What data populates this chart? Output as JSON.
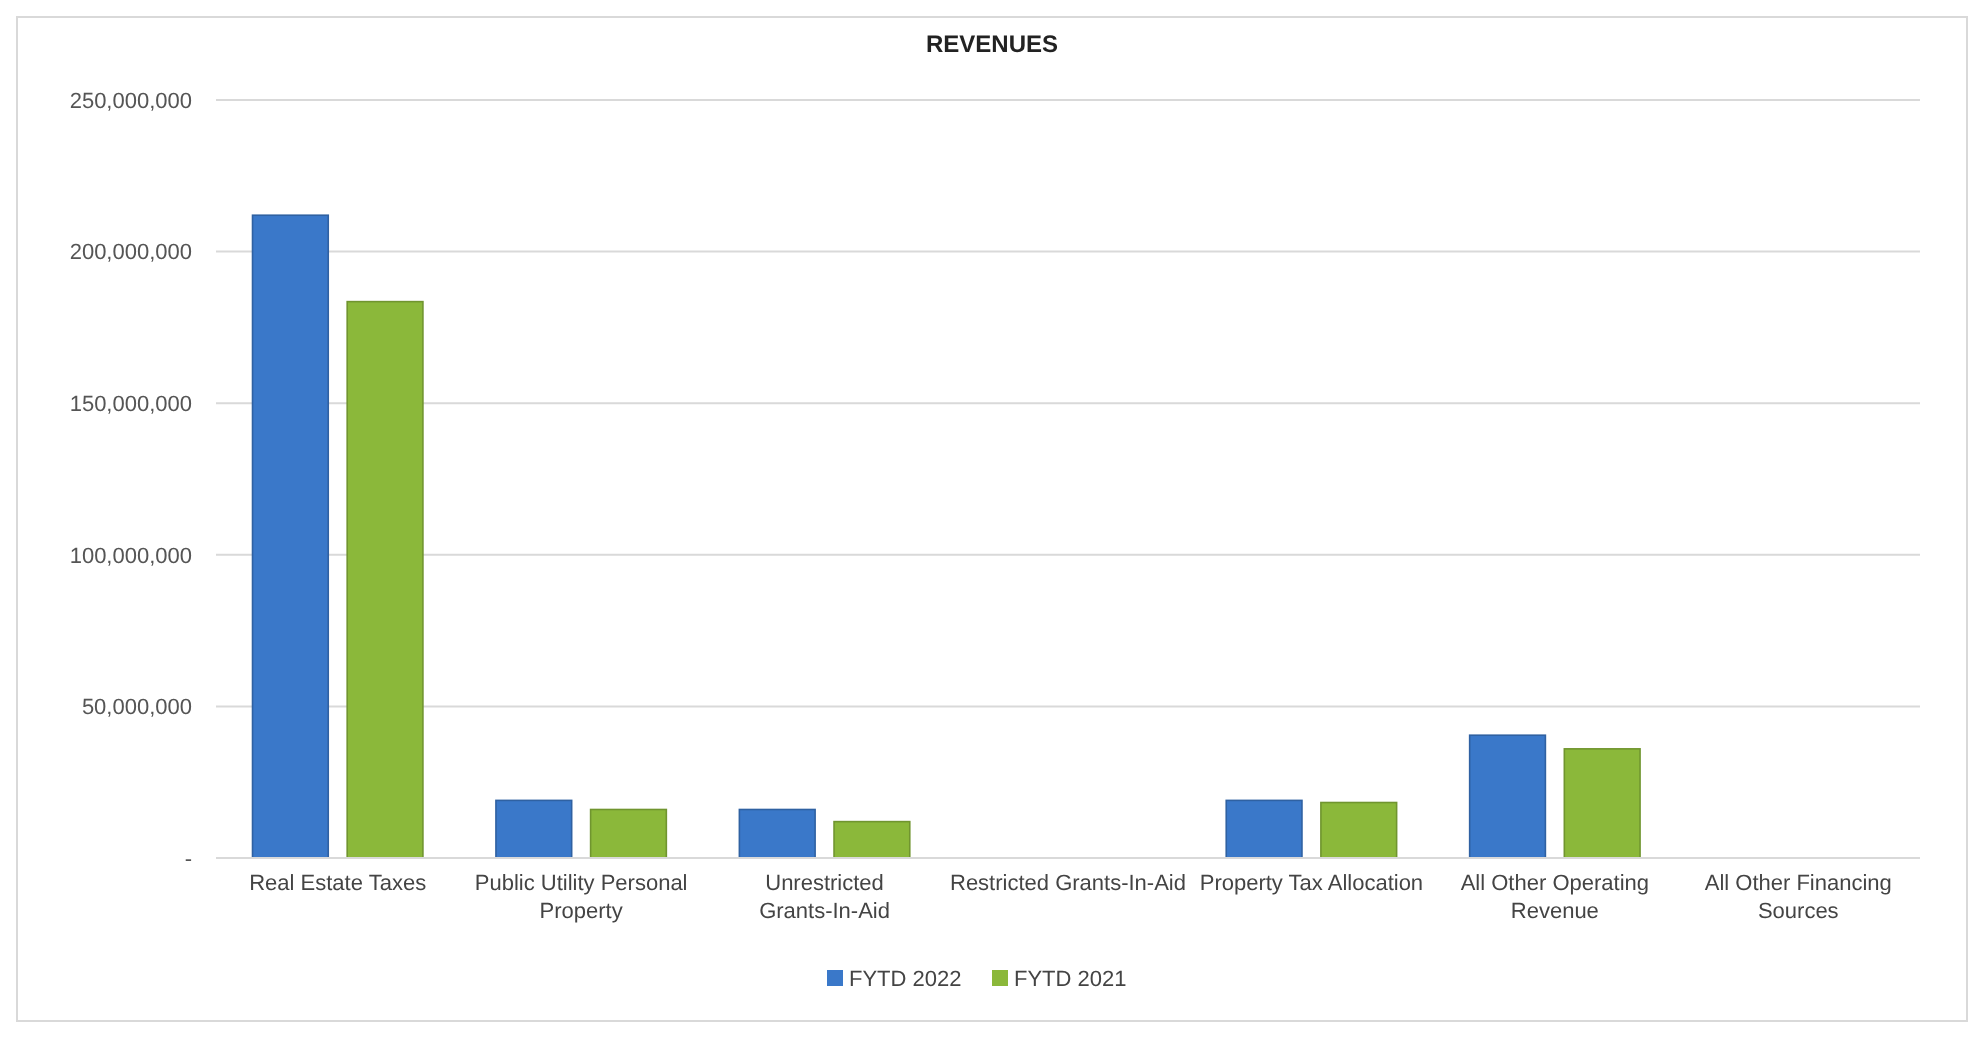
{
  "chart_data": {
    "type": "bar",
    "title": "REVENUES",
    "categories": [
      "Real Estate Taxes",
      "Public Utility Personal Property",
      "Unrestricted Grants-In-Aid",
      "Restricted Grants-In-Aid",
      "Property Tax Allocation",
      "All Other Operating Revenue",
      "All Other Financing Sources"
    ],
    "series": [
      {
        "name": "FYTD 2022",
        "color": "#3a78c9",
        "values": [
          212000000,
          19000000,
          16000000,
          0,
          19000000,
          40500000,
          0
        ]
      },
      {
        "name": "FYTD 2021",
        "color": "#8bb83a",
        "values": [
          183500000,
          16000000,
          12000000,
          0,
          18300000,
          36000000,
          0
        ]
      }
    ],
    "ylim": [
      0,
      250000000
    ],
    "yticks": [
      {
        "value": 0,
        "label": "-"
      },
      {
        "value": 50000000,
        "label": "50,000,000"
      },
      {
        "value": 100000000,
        "label": "100,000,000"
      },
      {
        "value": 150000000,
        "label": "150,000,000"
      },
      {
        "value": 200000000,
        "label": "200,000,000"
      },
      {
        "value": 250000000,
        "label": "250,000,000"
      }
    ],
    "grid": "y",
    "legend": "bottom"
  }
}
